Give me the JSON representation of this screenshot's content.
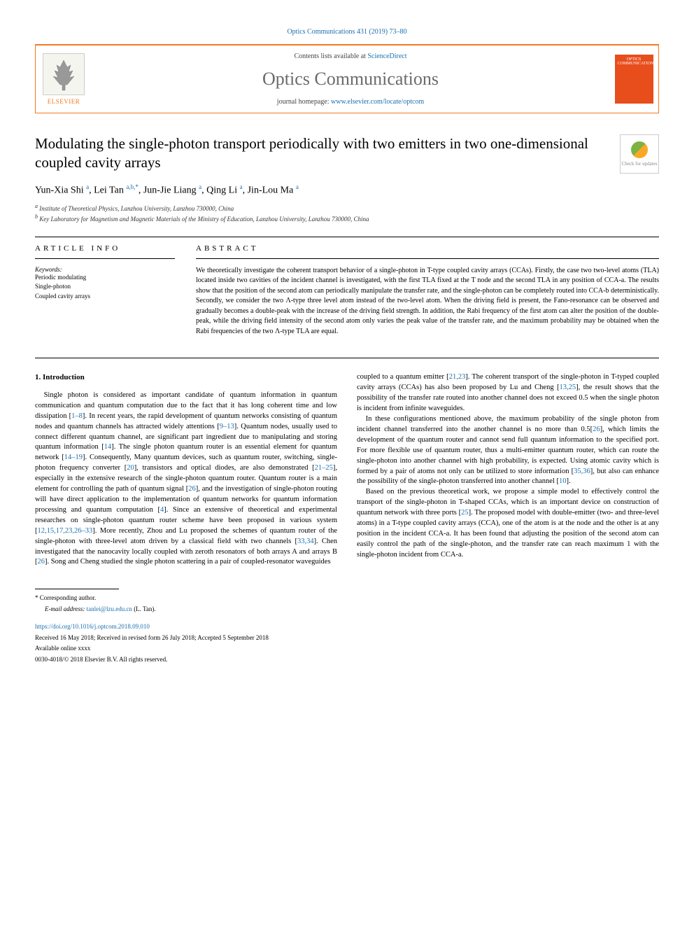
{
  "header": {
    "citation": "Optics Communications 431 (2019) 73–80",
    "contents_prefix": "Contents lists available at ",
    "contents_link": "ScienceDirect",
    "journal_name": "Optics Communications",
    "homepage_prefix": "journal homepage: ",
    "homepage_url": "www.elsevier.com/locate/optcom",
    "publisher": "ELSEVIER",
    "cover_text": "OPTICS COMMUNICATIONS",
    "check_updates": "Check for updates"
  },
  "article": {
    "title": "Modulating the single-photon transport periodically with two emitters in two one-dimensional coupled cavity arrays",
    "authors_html": "Yun-Xia Shi <sup>a</sup>, Lei Tan <sup>a,b,*</sup>, Jun-Jie Liang <sup>a</sup>, Qing Li <sup>a</sup>, Jin-Lou Ma <sup>a</sup>",
    "affiliations": [
      {
        "sup": "a",
        "text": "Institute of Theoretical Physics, Lanzhou University, Lanzhou  730000, China"
      },
      {
        "sup": "b",
        "text": "Key Laboratory for Magnetism and Magnetic Materials of the Ministry of Education, Lanzhou University, Lanzhou  730000, China"
      }
    ]
  },
  "info": {
    "label": "ARTICLE INFO",
    "keywords_label": "Keywords:",
    "keywords": [
      "Periodic modulating",
      "Single-photon",
      "Coupled cavity arrays"
    ]
  },
  "abstract": {
    "label": "ABSTRACT",
    "text": "We theoretically investigate the coherent transport behavior of a single-photon in T-type coupled cavity arrays (CCAs). Firstly, the case two two-level atoms (TLA) located inside two cavities of the incident channel is investigated, with the first TLA fixed at the T node and the second TLA in any position of CCA-a. The results show that the position of the second atom can periodically manipulate the transfer rate, and the single-photon can be completely routed into CCA-b deterministically. Secondly, we consider the two Λ-type three level atom instead of the two-level atom. When the driving field is present, the Fano-resonance can be observed and gradually becomes a double-peak with the increase of the driving field strength. In addition, the Rabi frequency of the first atom can alter the position of the double-peak, while the driving field intensity of the second atom only varies the peak value of the transfer rate, and the maximum probability may be obtained when the Rabi frequencies of the two Λ-type TLA are equal."
  },
  "body": {
    "section1_heading": "1. Introduction",
    "col1_p1": "Single photon is considered as important candidate of quantum information in quantum communication and quantum computation due to the fact that it has long coherent time and low dissipation [1–8]. In recent years, the rapid development of quantum networks consisting of quantum nodes and quantum channels has attracted widely attentions [9–13]. Quantum nodes, usually used to connect different quantum channel, are significant part ingredient due to manipulating and storing quantum information [14]. The single photon quantum router is an essential element for quantum network [14–19]. Consequently, Many quantum devices, such as quantum router, switching, single-photon frequency converter [20], transistors and optical diodes, are also demonstrated [21–25], especially in the extensive research of the single-photon quantum router. Quantum router is a main element for controlling the path of quantum signal [26], and the investigation of single-photon routing will have direct application to the implementation of quantum networks for quantum information processing and quantum computation [4]. Since an extensive of theoretical and experimental researches on single-photon quantum router scheme have been proposed in various system [12,15,17,23,26–33]. More recently, Zhou and Lu proposed the schemes of quantum router of the single-photon with three-level atom driven by a classical field with two channels [33,34]. Chen investigated that the nanocavity locally coupled with zeroth resonators of both arrays A and arrays B [26]. Song and Cheng studied the single photon scattering in a pair of coupled-resonator waveguides",
    "col2_p1": "coupled to a quantum emitter [21,23]. The coherent transport of the single-photon in T-typed coupled cavity arrays (CCAs) has also been proposed by Lu and Cheng [13,25], the result shows that the possibility of the transfer rate routed into another channel does not exceed 0.5 when the single photon is incident from infinite waveguides.",
    "col2_p2": "In these configurations mentioned above, the maximum probability of the single photon from incident channel transferred into the another channel is no more than 0.5[26], which limits the development of the quantum router and cannot send full quantum information to the specified port. For more flexible use of quantum router, thus a multi-emitter quantum router, which can route the single-photon into another channel with high probability, is expected. Using atomic cavity which is formed by a pair of atoms not only can be utilized to store information [35,36], but also can enhance the possibility of the single-photon transferred into another channel [10].",
    "col2_p3": "Based on the previous theoretical work, we propose a simple model to effectively control the transport of the single-photon in T-shaped CCAs, which is an important device on construction of quantum network with three ports [25]. The proposed model with double-emitter (two- and three-level atoms) in a T-type coupled cavity arrays (CCA), one of the atom is at the node and the other is at any position in the incident CCA-a. It has been found that adjusting the position of the second atom can easily control the path of the single-photon, and the transfer rate can reach maximum 1 with the single-photon incident from CCA-a."
  },
  "footer": {
    "corresponding": "*   Corresponding author.",
    "email_label": "E-mail address:",
    "email": "tanlei@lzu.edu.cn",
    "email_name": "(L. Tan).",
    "doi": "https://doi.org/10.1016/j.optcom.2018.09.010",
    "dates": "Received 16 May 2018; Received in revised form 26 July 2018; Accepted 5 September 2018",
    "available": "Available online xxxx",
    "copyright": "0030-4018/© 2018 Elsevier B.V. All rights reserved."
  },
  "colors": {
    "link": "#1a6faf",
    "accent": "#f47920",
    "cover": "#e84d1c"
  }
}
